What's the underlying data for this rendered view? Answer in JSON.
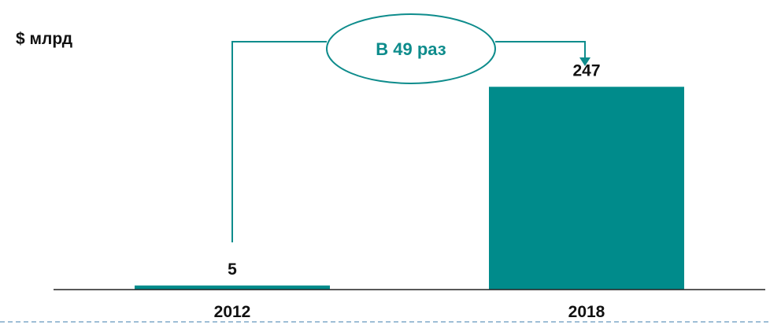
{
  "chart_data": {
    "type": "bar",
    "unit_label": "$ млрд",
    "categories": [
      "2012",
      "2018"
    ],
    "values": [
      5,
      247
    ],
    "data_labels": [
      "5",
      "247"
    ],
    "annotation": "В 49 раз",
    "ylim": [
      0,
      300
    ],
    "grid": false,
    "colors": {
      "bar": "#008B8B",
      "annotation": "#0E8C8C",
      "axis": "#222222",
      "text": "#111111",
      "dashed_border": "#7FA8C8"
    }
  }
}
